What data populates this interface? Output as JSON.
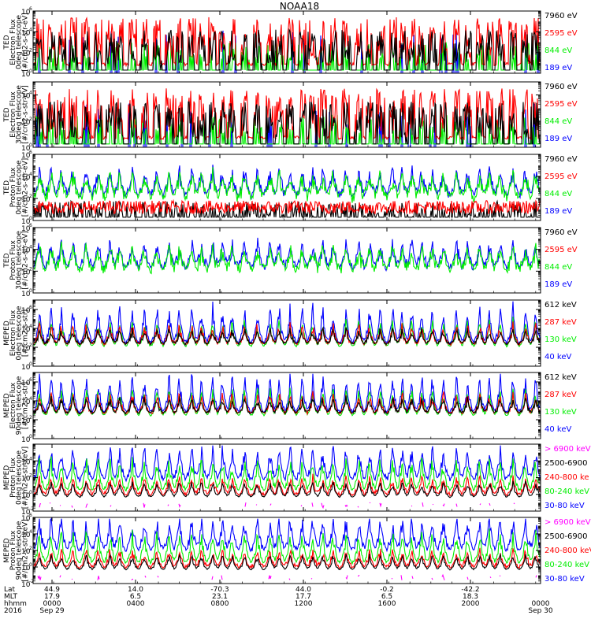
{
  "title": "NOAA18",
  "colors": {
    "black": "#000000",
    "red": "#ff0000",
    "green": "#00ee00",
    "blue": "#0000ff",
    "magenta": "#ff00ff"
  },
  "chart_data": [
    {
      "type": "line",
      "ylabel": [
        "TED",
        "Electron Flux",
        "0deg telescope",
        "[#/cm2-s-str-eV]"
      ],
      "yscale": "log",
      "ylim": [
        1,
        1000000
      ],
      "ticks": [
        {
          "pow": 0,
          "text": "10",
          "exp": "0"
        },
        {
          "pow": 2,
          "text": "10",
          "exp": "2"
        },
        {
          "pow": 4,
          "text": "10",
          "exp": "4"
        },
        {
          "pow": 6,
          "text": "10",
          "exp": "6"
        }
      ],
      "legend": [
        {
          "label": "7960 eV",
          "color": "black"
        },
        {
          "label": "2595 eV",
          "color": "red"
        },
        {
          "label": "844 eV",
          "color": "green"
        },
        {
          "label": "189 eV",
          "color": "blue"
        }
      ],
      "style": "ted_e"
    },
    {
      "type": "line",
      "ylabel": [
        "TED",
        "Electron Flux",
        "30deg telescope",
        "[#/cm2-s-str-eV]"
      ],
      "yscale": "log",
      "ylim": [
        1,
        100000
      ],
      "ticks": [
        {
          "pow": 0,
          "text": "10",
          "exp": "0"
        },
        {
          "pow": 2,
          "text": "10",
          "exp": "2"
        },
        {
          "pow": 4,
          "text": "10",
          "exp": "4"
        }
      ],
      "legend": [
        {
          "label": "7960 eV",
          "color": "black"
        },
        {
          "label": "2595 eV",
          "color": "red"
        },
        {
          "label": "844 eV",
          "color": "green"
        },
        {
          "label": "189 eV",
          "color": "blue"
        }
      ],
      "style": "ted_e"
    },
    {
      "type": "line",
      "ylabel": [
        "TED",
        "Proton Flux",
        "0deg telescope",
        "[#/cm2-s-str-eV]"
      ],
      "yscale": "log",
      "ylim": [
        1,
        1000000
      ],
      "ticks": [
        {
          "pow": 0,
          "text": "10",
          "exp": "0"
        },
        {
          "pow": 2,
          "text": "10",
          "exp": "2"
        },
        {
          "pow": 4,
          "text": "10",
          "exp": "4"
        },
        {
          "pow": 6,
          "text": "10",
          "exp": "6"
        }
      ],
      "legend": [
        {
          "label": "7960 eV",
          "color": "black"
        },
        {
          "label": "2595 eV",
          "color": "red"
        },
        {
          "label": "844 eV",
          "color": "green"
        },
        {
          "label": "189 eV",
          "color": "blue"
        }
      ],
      "style": "ted_p"
    },
    {
      "type": "line",
      "ylabel": [
        "TED",
        "Proton Flux",
        "30deg telescope",
        "[#/cm2-s-str-eV]"
      ],
      "yscale": "log",
      "ylim": [
        1,
        1000000
      ],
      "ticks": [
        {
          "pow": 0,
          "text": "10",
          "exp": "0"
        },
        {
          "pow": 2,
          "text": "10",
          "exp": "2"
        },
        {
          "pow": 4,
          "text": "10",
          "exp": "4"
        },
        {
          "pow": 6,
          "text": "10",
          "exp": "6"
        }
      ],
      "legend": [
        {
          "label": "7960 eV",
          "color": "black"
        },
        {
          "label": "2595 eV",
          "color": "red"
        },
        {
          "label": "844 eV",
          "color": "green"
        },
        {
          "label": "189 eV",
          "color": "blue"
        }
      ],
      "style": "ted_p30"
    },
    {
      "type": "line",
      "ylabel": [
        "MEPED",
        "Electron Flux",
        "0deg telescope",
        "[#/cm2-s-str]"
      ],
      "yscale": "log",
      "ylim": [
        1,
        10000000
      ],
      "ticks": [
        {
          "pow": 0,
          "text": "10",
          "exp": "0"
        },
        {
          "pow": 2,
          "text": "10",
          "exp": "2"
        },
        {
          "pow": 4,
          "text": "10",
          "exp": "4"
        },
        {
          "pow": 6,
          "text": "10",
          "exp": "6"
        }
      ],
      "legend": [
        {
          "label": "612 keV",
          "color": "black"
        },
        {
          "label": "287 keV",
          "color": "red"
        },
        {
          "label": "130 keV",
          "color": "green"
        },
        {
          "label": "40 keV",
          "color": "blue"
        }
      ],
      "style": "mep_e"
    },
    {
      "type": "line",
      "ylabel": [
        "MEPED",
        "Electron Flux",
        "90deg telescope",
        "[#/cm2-s-str]"
      ],
      "yscale": "log",
      "ylim": [
        1,
        10000000
      ],
      "ticks": [
        {
          "pow": 0,
          "text": "10",
          "exp": "0"
        },
        {
          "pow": 2,
          "text": "10",
          "exp": "2"
        },
        {
          "pow": 4,
          "text": "10",
          "exp": "4"
        },
        {
          "pow": 6,
          "text": "10",
          "exp": "6"
        }
      ],
      "legend": [
        {
          "label": "612 keV",
          "color": "black"
        },
        {
          "label": "287 keV",
          "color": "red"
        },
        {
          "label": "130 keV",
          "color": "green"
        },
        {
          "label": "40 keV",
          "color": "blue"
        }
      ],
      "style": "mep_e90"
    },
    {
      "type": "line",
      "ylabel": [
        "MEPED",
        "Proton Flux",
        "0deg telescope",
        "[#/cm2-s-str-keV]"
      ],
      "yscale": "log",
      "ylim": [
        0.01,
        1000000
      ],
      "ticks": [
        {
          "pow": -2,
          "text": "10",
          "exp": "-2"
        },
        {
          "pow": 0,
          "text": "10",
          "exp": "0"
        },
        {
          "pow": 2,
          "text": "10",
          "exp": "2"
        },
        {
          "pow": 4,
          "text": "10",
          "exp": "4"
        }
      ],
      "legend": [
        {
          "label": "> 6900 keV",
          "color": "magenta"
        },
        {
          "label": "2500-6900",
          "color": "black"
        },
        {
          "label": "240-800 ke",
          "color": "red"
        },
        {
          "label": "80-240 keV",
          "color": "green"
        },
        {
          "label": "30-80 keV",
          "color": "blue"
        }
      ],
      "style": "mep_p"
    },
    {
      "type": "line",
      "ylabel": [
        "MEPED",
        "Proton Flux",
        "90deg telescope",
        "[#/cm2-s-str-keV]"
      ],
      "yscale": "log",
      "ylim": [
        0.01,
        1000000
      ],
      "ticks": [
        {
          "pow": -2,
          "text": "10",
          "exp": "-2"
        },
        {
          "pow": 0,
          "text": "10",
          "exp": "0"
        },
        {
          "pow": 2,
          "text": "10",
          "exp": "2"
        },
        {
          "pow": 4,
          "text": "10",
          "exp": "4"
        },
        {
          "pow": 6,
          "text": "10",
          "exp": "6"
        }
      ],
      "legend": [
        {
          "label": "> 6900 keV",
          "color": "magenta"
        },
        {
          "label": "2500-6900",
          "color": "black"
        },
        {
          "label": "240-800 keV",
          "color": "red"
        },
        {
          "label": "80-240 keV",
          "color": "green"
        },
        {
          "label": "30-80 keV",
          "color": "blue"
        }
      ],
      "style": "mep_p90"
    }
  ],
  "x_axis": {
    "row_labels": [
      "Lat",
      "MLT",
      "hhmm",
      "2016"
    ],
    "columns": [
      {
        "lat": "44.9",
        "mlt": "17.9",
        "hhmm": "0000",
        "date": "Sep 29"
      },
      {
        "lat": "14.0",
        "mlt": "6.5",
        "hhmm": "0400",
        "date": ""
      },
      {
        "lat": "-70.3",
        "mlt": "23.1",
        "hhmm": "0800",
        "date": ""
      },
      {
        "lat": "44.0",
        "mlt": "17.7",
        "hhmm": "1200",
        "date": ""
      },
      {
        "lat": "-0.2",
        "mlt": "6.5",
        "hhmm": "1600",
        "date": ""
      },
      {
        "lat": "-42.2",
        "mlt": "18.3",
        "hhmm": "2000",
        "date": ""
      },
      {
        "lat": "",
        "mlt": "",
        "hhmm": "0000",
        "date": "Sep 30"
      }
    ]
  }
}
